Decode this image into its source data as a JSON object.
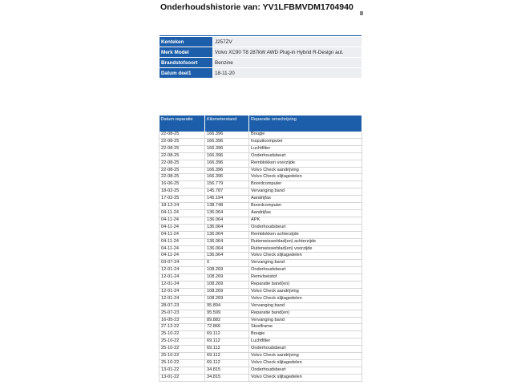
{
  "header": {
    "title": "Onderhoudshistorie van: YV1LFBMVDM1704940"
  },
  "info": {
    "rows": [
      [
        "Kenteken",
        "J257ZV"
      ],
      [
        "Merk Model",
        "Volvo XC90 T8 287kW AWD Plug-in Hybrid R-Design aut."
      ],
      [
        "Brandstofsoort",
        "Benzine"
      ],
      [
        "Datum deel1",
        "18-11-20"
      ]
    ]
  },
  "table": {
    "headers": [
      "Datum reparatie",
      "Kilometerstand",
      "Reparatie omschrijving"
    ],
    "rows": [
      [
        "22-08-25",
        "166.396",
        "Bougie"
      ],
      [
        "22-08-25",
        "166.396",
        "Inspuitcomputer"
      ],
      [
        "22-08-25",
        "166.396",
        "Luchtfilter"
      ],
      [
        "22-08-25",
        "166.396",
        "Onderhoudsbeurt"
      ],
      [
        "22-08-25",
        "166.396",
        "Remblokken voorzijde"
      ],
      [
        "22-08-25",
        "166.396",
        "Volvo Check aandrijving"
      ],
      [
        "22-08-25",
        "166.396",
        "Volvo Check slijtagedelen"
      ],
      [
        "16-06-25",
        "156.779",
        "Boordcomputer"
      ],
      [
        "18-02-25",
        "145.787",
        "Vervanging band"
      ],
      [
        "17-02-25",
        "145.194",
        "Aandrijfas"
      ],
      [
        "18-12-24",
        "138.748",
        "Boordcomputer"
      ],
      [
        "04-11-24",
        "136.064",
        "Aandrijfas"
      ],
      [
        "04-11-24",
        "136.064",
        "APK"
      ],
      [
        "04-11-24",
        "136.064",
        "Onderhoudsbeurt"
      ],
      [
        "04-11-24",
        "136.064",
        "Remblokken achterzijde"
      ],
      [
        "04-11-24",
        "136.064",
        "Ruitenwisserblad(en) achterzijde"
      ],
      [
        "04-11-24",
        "136.064",
        "Ruitenwisserblad(en) voorzijde"
      ],
      [
        "04-11-24",
        "136.064",
        "Volvo Check slijtagedelen"
      ],
      [
        "03-07-24",
        "0",
        "Vervanging band"
      ],
      [
        "12-01-24",
        "108.269",
        "Onderhoudsbeurt"
      ],
      [
        "12-01-24",
        "108.269",
        "Remvloeistof"
      ],
      [
        "12-01-24",
        "108.269",
        "Reparatie band(en)"
      ],
      [
        "12-01-24",
        "108.269",
        "Volvo Check aandrijving"
      ],
      [
        "12-01-24",
        "108.269",
        "Volvo Check slijtagedelen"
      ],
      [
        "28-07-23",
        "95.894",
        "Vervanging band"
      ],
      [
        "25-07-23",
        "95.599",
        "Reparatie band(en)"
      ],
      [
        "16-05-23",
        "89.882",
        "Vervanging band"
      ],
      [
        "27-12-22",
        "72.866",
        "Stoelframe"
      ],
      [
        "25-10-22",
        "69.112",
        "Bougie"
      ],
      [
        "25-10-22",
        "69.112",
        "Luchtfilter"
      ],
      [
        "25-10-22",
        "69.112",
        "Onderhoudsbeurt"
      ],
      [
        "25-10-22",
        "69.112",
        "Volvo Check aandrijving"
      ],
      [
        "25-10-22",
        "69.112",
        "Volvo Check slijtagedelen"
      ],
      [
        "13-01-22",
        "34.815",
        "Onderhoudsbeurt"
      ],
      [
        "13-01-22",
        "34.815",
        "Volvo Check slijtagedelen"
      ]
    ]
  }
}
